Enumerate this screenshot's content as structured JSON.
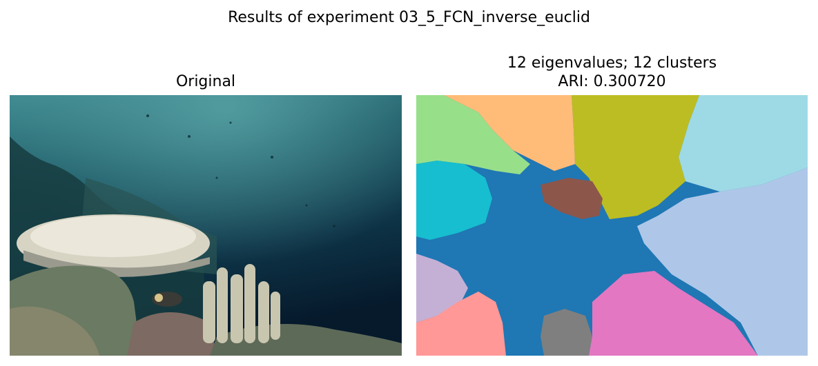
{
  "figure": {
    "suptitle": "Results of experiment 03_5_FCN_inverse_euclid"
  },
  "panels": {
    "left": {
      "title": "Original"
    },
    "right": {
      "title_line1": "12 eigenvalues; 12 clusters",
      "title_line2": "ARI: 0.300720"
    }
  },
  "cluster_colors": [
    "#1f77b4",
    "#aec7e8",
    "#ffbb78",
    "#98df8a",
    "#ff9896",
    "#c5b0d5",
    "#8c564b",
    "#e377c2",
    "#7f7f7f",
    "#bcbd22",
    "#17becf",
    "#9edae5"
  ]
}
